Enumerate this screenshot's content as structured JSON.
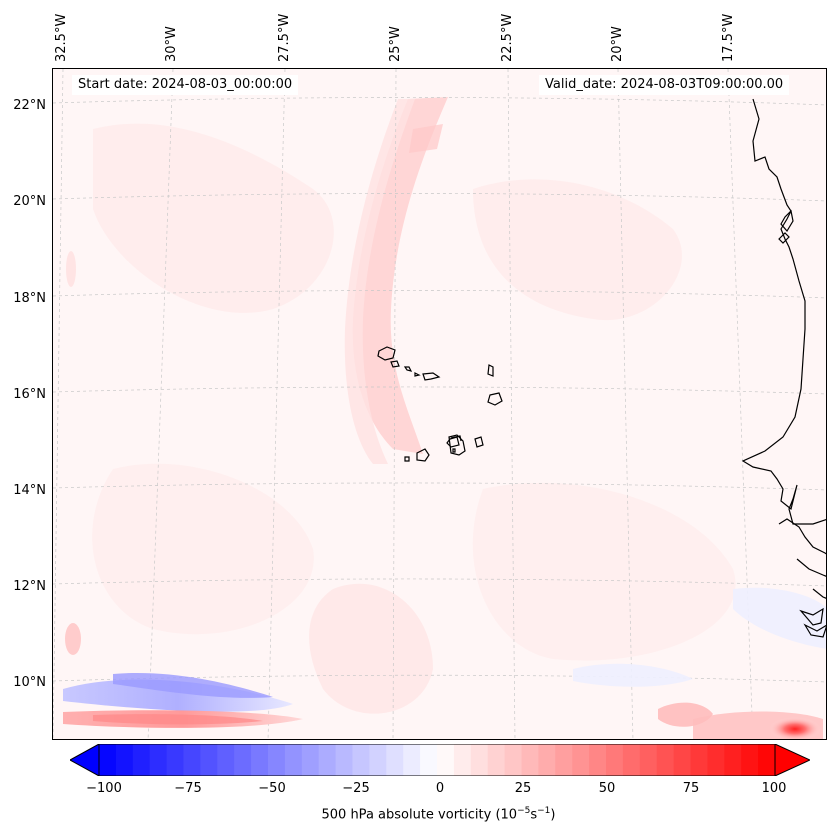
{
  "header": {
    "start_date": "Start date: 2024-08-03_00:00:00",
    "valid_date": "Valid_date: 2024-08-03T09:00:00.00"
  },
  "longitude_labels": [
    "32.5°W",
    "30°W",
    "27.5°W",
    "25°W",
    "22.5°W",
    "20°W",
    "17.5°W"
  ],
  "latitude_labels": [
    "22°N",
    "20°N",
    "18°N",
    "16°N",
    "14°N",
    "12°N",
    "10°N"
  ],
  "colorbar": {
    "ticks": [
      "−100",
      "−75",
      "−50",
      "−25",
      "0",
      "25",
      "50",
      "75",
      "100"
    ],
    "label": "500 hPa absolute vorticity (10",
    "label_exp1": "−5",
    "label_mid": "s",
    "label_exp2": "−1",
    "label_end": ")",
    "min": -100,
    "max": 100,
    "low_color": "#0000ff",
    "zero_color": "#ffffff",
    "high_color": "#ff0000"
  },
  "field": {
    "variable": "500 hPa absolute vorticity",
    "colormap": "bwr"
  }
}
